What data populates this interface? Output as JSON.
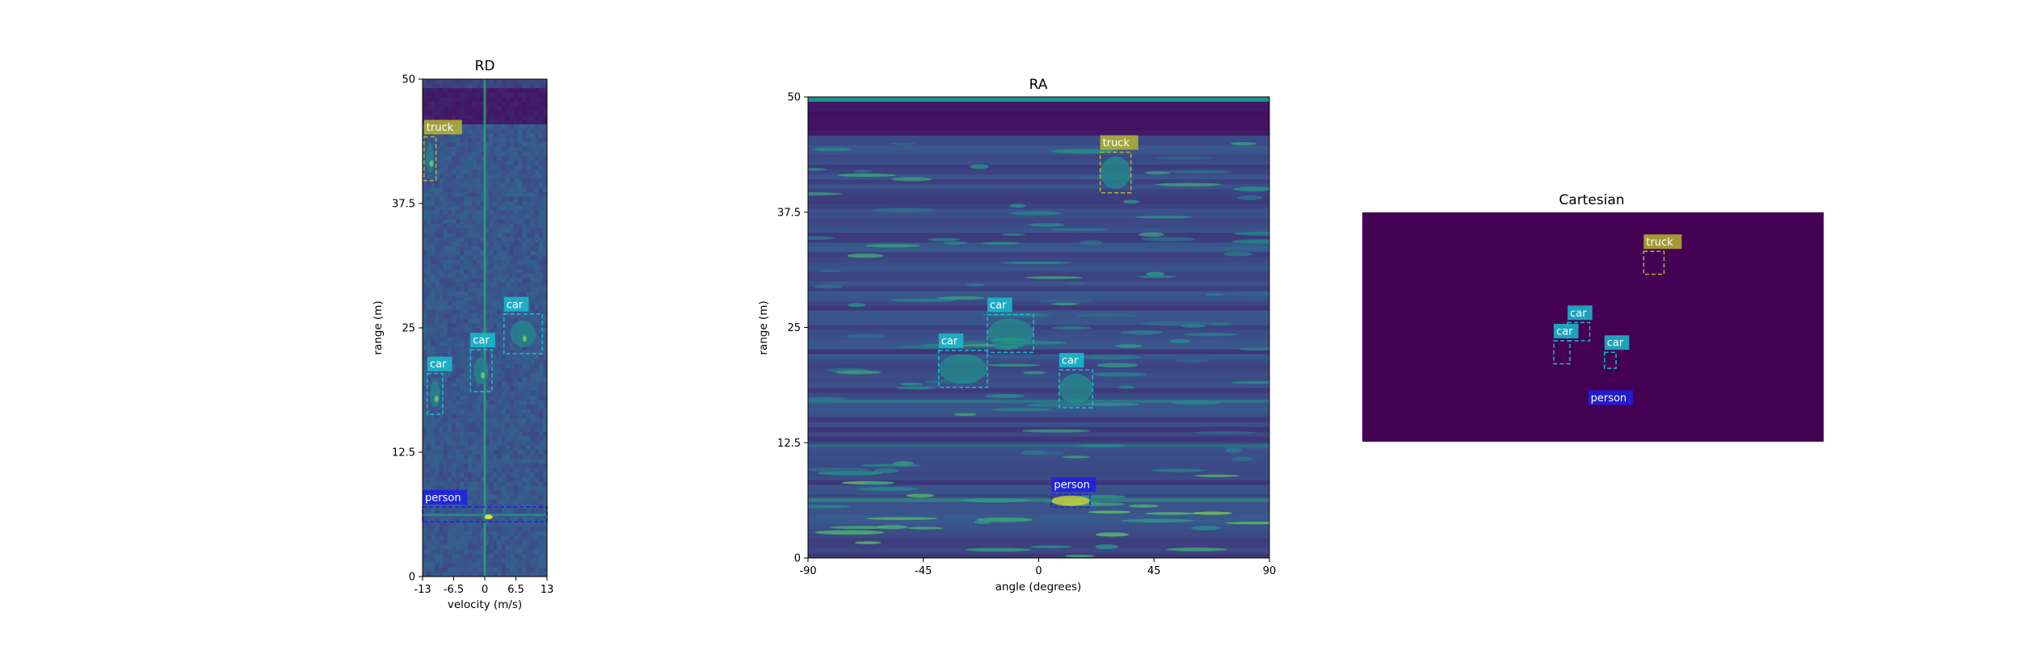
{
  "chart_data": [
    {
      "type": "heatmap",
      "title": "RD",
      "xlabel": "velocity (m/s)",
      "ylabel": "range (m)",
      "xlim": [
        -13,
        13
      ],
      "ylim": [
        0,
        50
      ],
      "xticks": [
        "-13",
        "-6.5",
        "0",
        "6.5",
        "13"
      ],
      "yticks": [
        "0",
        "12.5",
        "25",
        "37.5",
        "50"
      ],
      "objects": [
        {
          "label": "truck",
          "x0": -12.7,
          "x1": -10.2,
          "y0": 39.8,
          "y1": 44.2
        },
        {
          "label": "car",
          "x0": 4.0,
          "x1": 12.0,
          "y0": 22.4,
          "y1": 26.4
        },
        {
          "label": "car",
          "x0": -3.0,
          "x1": 1.5,
          "y0": 18.6,
          "y1": 22.8
        },
        {
          "label": "car",
          "x0": -12.0,
          "x1": -8.8,
          "y0": 16.3,
          "y1": 20.4
        },
        {
          "label": "person",
          "x0": -13,
          "x1": 13,
          "y0": 5.5,
          "y1": 7.0
        }
      ]
    },
    {
      "type": "heatmap",
      "title": "RA",
      "xlabel": "angle (degrees)",
      "ylabel": "range (m)",
      "xlim": [
        -90,
        90
      ],
      "ylim": [
        0,
        50
      ],
      "xticks": [
        "-90",
        "-45",
        "0",
        "45",
        "90"
      ],
      "yticks": [
        "0",
        "12.5",
        "25",
        "37.5",
        "50"
      ],
      "objects": [
        {
          "label": "truck",
          "x0": 24,
          "x1": 36,
          "y0": 39.6,
          "y1": 44.0
        },
        {
          "label": "car",
          "x0": -20,
          "x1": -2,
          "y0": 22.3,
          "y1": 26.4
        },
        {
          "label": "car",
          "x0": -39,
          "x1": -20,
          "y0": 18.5,
          "y1": 22.5
        },
        {
          "label": "car",
          "x0": 8,
          "x1": 21,
          "y0": 16.3,
          "y1": 20.4
        },
        {
          "label": "person",
          "x0": 5,
          "x1": 20,
          "y0": 5.5,
          "y1": 6.9
        }
      ]
    },
    {
      "type": "heatmap",
      "title": "Cartesian",
      "xlabel": "",
      "ylabel": "",
      "background": "#440154",
      "objects": [
        {
          "label": "truck",
          "x0": 0.61,
          "x1": 0.654,
          "y0": 0.17,
          "y1": 0.27
        },
        {
          "label": "car",
          "x0": 0.445,
          "x1": 0.493,
          "y0": 0.48,
          "y1": 0.56
        },
        {
          "label": "car",
          "x0": 0.415,
          "x1": 0.45,
          "y0": 0.56,
          "y1": 0.66
        },
        {
          "label": "car",
          "x0": 0.525,
          "x1": 0.55,
          "y0": 0.61,
          "y1": 0.68
        },
        {
          "label": "person",
          "x0": 0.538,
          "x1": 0.538,
          "y0": 0.85,
          "y1": 0.85
        }
      ]
    }
  ],
  "label_colors": {
    "truck": "#b5b530",
    "car": "#17becf",
    "person": "#1e1ee6"
  },
  "viridis": [
    "#440154",
    "#3b528b",
    "#21918c",
    "#5ec962",
    "#fde725"
  ]
}
